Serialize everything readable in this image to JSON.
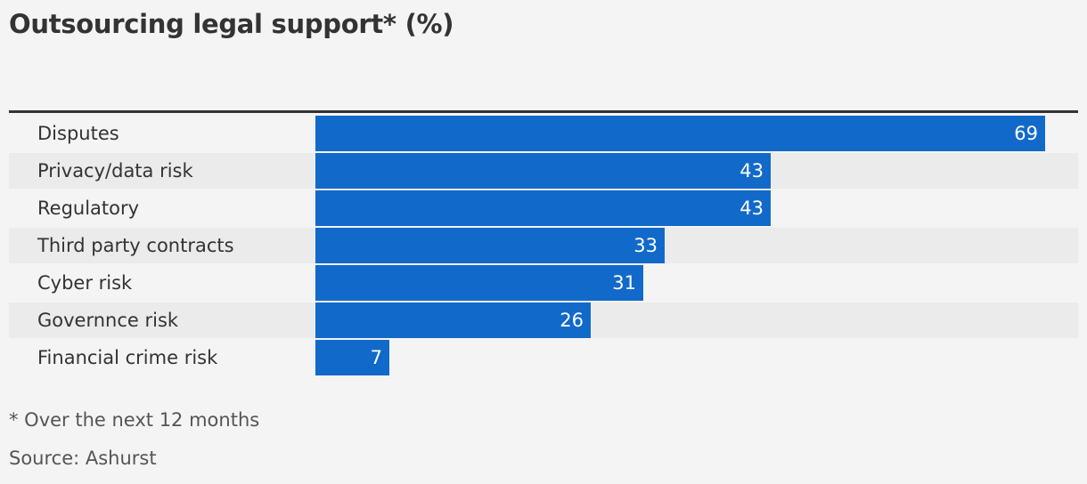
{
  "chart_data": {
    "type": "bar",
    "orientation": "horizontal",
    "title": "Outsourcing legal support* (%)",
    "categories": [
      "Disputes",
      "Privacy/data risk",
      "Regulatory",
      "Third party contracts",
      "Cyber risk",
      "Governnce risk",
      "Financial crime risk"
    ],
    "values": [
      69,
      43,
      43,
      33,
      31,
      26,
      7
    ],
    "value_labels": [
      "69",
      "43",
      "43",
      "33",
      "31",
      "26",
      "7"
    ],
    "xlim": [
      0,
      71
    ],
    "grid": false,
    "bar_color": "#116ac9"
  },
  "footnote": "* Over the next 12 months",
  "source": "Source: Ashurst"
}
